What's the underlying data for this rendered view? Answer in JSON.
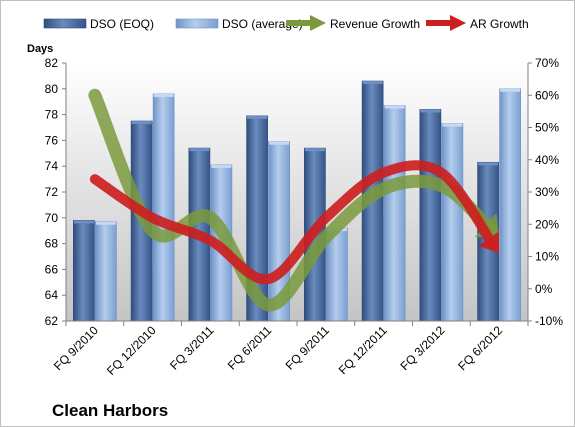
{
  "chart_data": {
    "type": "bar",
    "title": "Clean Harbors",
    "ylabel": "Days",
    "ylim": [
      62,
      82
    ],
    "y_ticks": [
      62,
      64,
      66,
      68,
      70,
      72,
      74,
      76,
      78,
      80,
      82
    ],
    "y2lim": [
      -10,
      70
    ],
    "y2_ticks": [
      "-10%",
      "0%",
      "10%",
      "20%",
      "30%",
      "40%",
      "50%",
      "60%",
      "70%"
    ],
    "y2_values": [
      -10,
      0,
      10,
      20,
      30,
      40,
      50,
      60,
      70
    ],
    "categories": [
      "FQ 9/2010",
      "FQ 12/2010",
      "FQ 3/2011",
      "FQ 6/2011",
      "FQ 9/2011",
      "FQ 12/2011",
      "FQ 3/2012",
      "FQ 6/2012"
    ],
    "series": [
      {
        "name": "DSO (EOQ)",
        "type": "bar",
        "axis": "left",
        "values": [
          69.8,
          77.5,
          75.4,
          77.9,
          75.4,
          80.6,
          78.4,
          74.3
        ]
      },
      {
        "name": "DSO (average)",
        "type": "bar",
        "axis": "left",
        "values": [
          69.7,
          79.6,
          74.1,
          75.9,
          69.2,
          78.7,
          77.3,
          80.0
        ]
      },
      {
        "name": "Revenue Growth",
        "type": "line",
        "axis": "right",
        "values": [
          60,
          18,
          22,
          -5,
          16,
          31,
          32,
          16
        ]
      },
      {
        "name": "AR Growth",
        "type": "line",
        "axis": "right",
        "values": [
          34,
          22,
          15,
          3,
          22,
          36,
          36,
          11
        ]
      }
    ],
    "legend_position": "top",
    "grid": false
  },
  "colors": {
    "bar_eoq": "#4f6ea3",
    "bar_avg": "#8fb1dd",
    "revenue_growth": "#7a9a3c",
    "ar_growth": "#cc2020",
    "plot_bg_top": "#ffffff",
    "plot_bg_bottom": "#c4c4c4"
  }
}
